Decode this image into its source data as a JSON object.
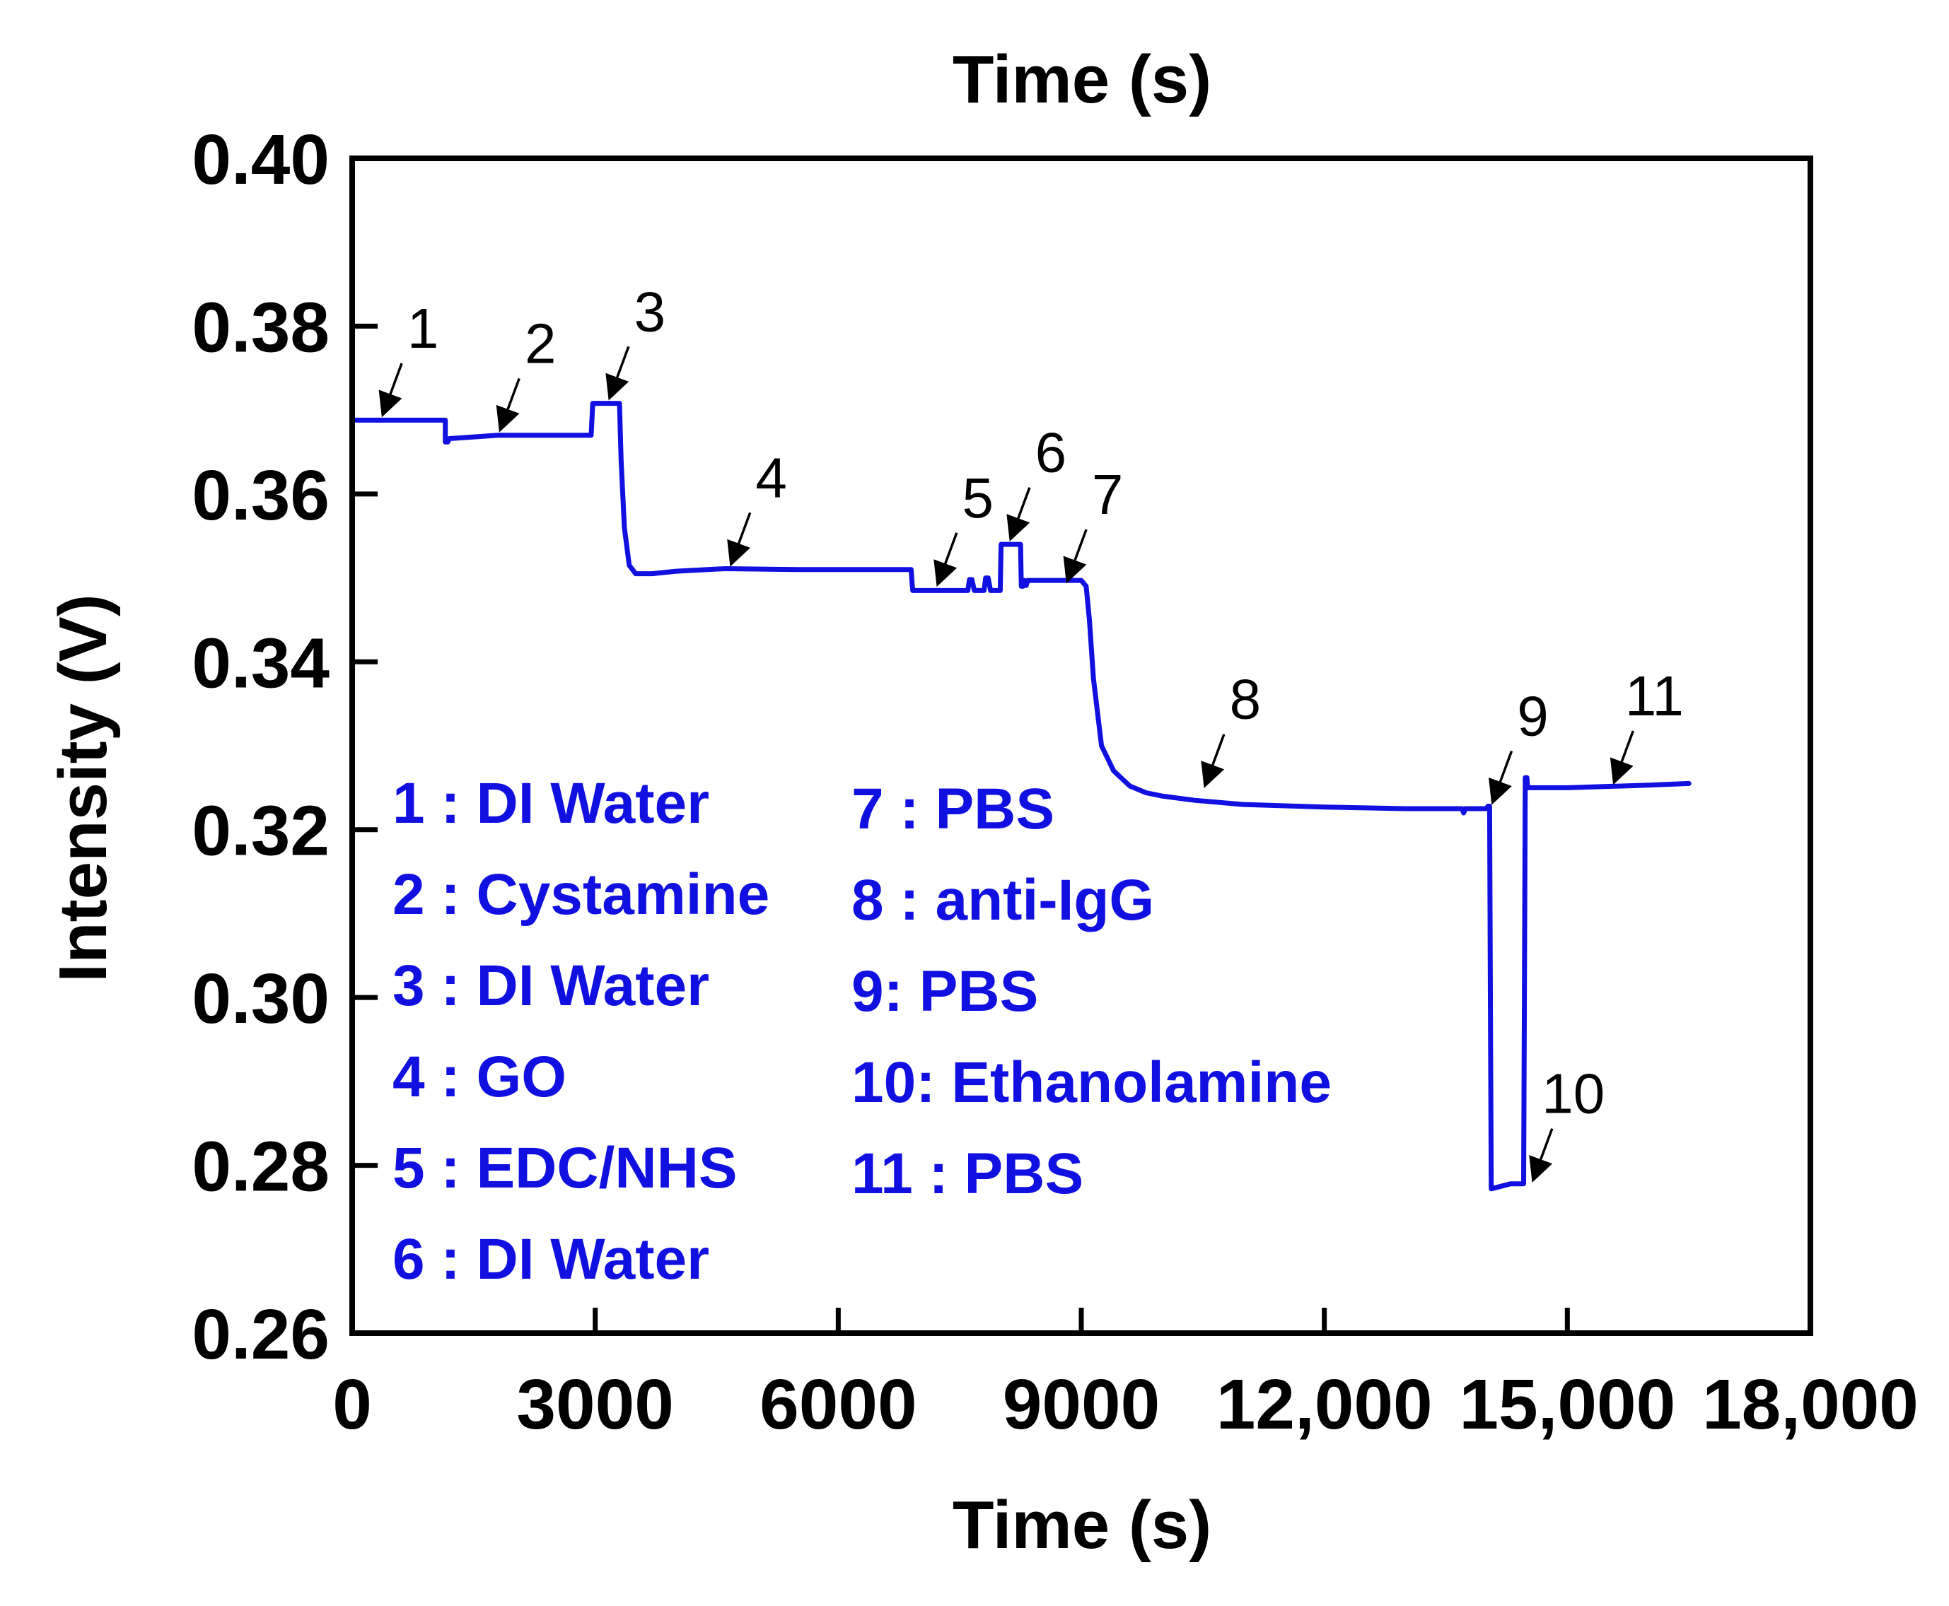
{
  "chart_data": {
    "type": "line",
    "title": "Time (s)",
    "xlabel": "Time (s)",
    "ylabel": "Intensity (V)",
    "xlim": [
      0,
      18000
    ],
    "ylim": [
      0.26,
      0.4
    ],
    "x_ticks": [
      0,
      3000,
      6000,
      9000,
      12000,
      15000,
      18000
    ],
    "x_tick_labels": [
      "0",
      "3000",
      "6000",
      "9000",
      "12,000",
      "15,000",
      "18,000"
    ],
    "y_ticks": [
      0.26,
      0.28,
      0.3,
      0.32,
      0.34,
      0.36,
      0.38,
      0.4
    ],
    "y_tick_labels": [
      "0.26",
      "0.28",
      "0.30",
      "0.32",
      "0.34",
      "0.36",
      "0.38",
      "0.40"
    ],
    "line_color": "#1010e0",
    "series": [
      {
        "name": "Intensity",
        "x": [
          0,
          1150,
          1150,
          1180,
          1200,
          1800,
          2950,
          2970,
          3300,
          3320,
          3360,
          3420,
          3500,
          3700,
          4000,
          4600,
          5500,
          6900,
          6910,
          6920,
          7600,
          7620,
          7650,
          7680,
          7700,
          7800,
          7820,
          7850,
          7880,
          7900,
          8000,
          8010,
          8020,
          8250,
          8260,
          8280,
          8300,
          8320,
          8340,
          9000,
          9060,
          9100,
          9150,
          9250,
          9400,
          9600,
          9800,
          10000,
          10400,
          11000,
          12000,
          13000,
          13700,
          13720,
          13740,
          13760,
          14000,
          14020,
          14040,
          14050,
          14060,
          14300,
          14450,
          14460,
          14470,
          14480,
          14500,
          14510,
          14520,
          15000,
          16000,
          16500
        ],
        "y": [
          0.3688,
          0.3688,
          0.3662,
          0.3662,
          0.3666,
          0.367,
          0.367,
          0.3708,
          0.3708,
          0.364,
          0.356,
          0.3515,
          0.3505,
          0.3505,
          0.3508,
          0.3511,
          0.351,
          0.351,
          0.3495,
          0.3485,
          0.3485,
          0.3498,
          0.3498,
          0.3485,
          0.3485,
          0.3485,
          0.35,
          0.35,
          0.3485,
          0.3485,
          0.3485,
          0.354,
          0.354,
          0.354,
          0.349,
          0.349,
          0.3497,
          0.3491,
          0.3497,
          0.3497,
          0.349,
          0.345,
          0.338,
          0.33,
          0.327,
          0.3252,
          0.3244,
          0.324,
          0.3235,
          0.323,
          0.3227,
          0.3225,
          0.3225,
          0.322,
          0.3225,
          0.3225,
          0.3225,
          0.3228,
          0.3228,
          0.3,
          0.2772,
          0.2778,
          0.2778,
          0.2778,
          0.3,
          0.3262,
          0.3262,
          0.325,
          0.325,
          0.325,
          0.3253,
          0.3255
        ]
      }
    ],
    "annotations": [
      {
        "label": "1",
        "x": 350,
        "y": 0.369
      },
      {
        "label": "2",
        "x": 1800,
        "y": 0.3672
      },
      {
        "label": "3",
        "x": 3150,
        "y": 0.371
      },
      {
        "label": "4",
        "x": 4650,
        "y": 0.3512
      },
      {
        "label": "5",
        "x": 7200,
        "y": 0.3488
      },
      {
        "label": "6",
        "x": 8100,
        "y": 0.3542
      },
      {
        "label": "7",
        "x": 8800,
        "y": 0.3492
      },
      {
        "label": "8",
        "x": 10500,
        "y": 0.3248
      },
      {
        "label": "9",
        "x": 14050,
        "y": 0.3228
      },
      {
        "label": "10",
        "x": 14550,
        "y": 0.2778
      },
      {
        "label": "11",
        "x": 15550,
        "y": 0.3252
      }
    ],
    "legend": {
      "col1": [
        "1 : DI Water",
        "2 : Cystamine",
        "3 : DI Water",
        "4 : GO",
        "5 : EDC/NHS",
        "6 : DI Water"
      ],
      "col2": [
        "7 : PBS",
        "8 : anti-IgG",
        "9: PBS",
        "10: Ethanolamine",
        "11 : PBS"
      ]
    }
  }
}
